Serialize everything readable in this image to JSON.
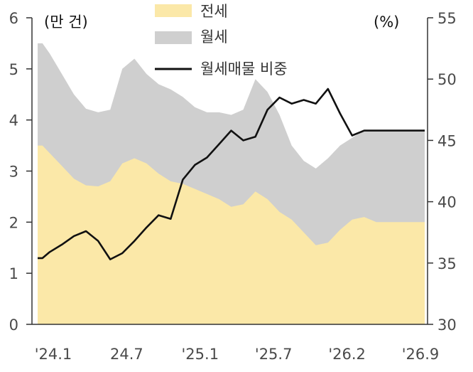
{
  "chart_data": {
    "type": "area",
    "left_unit": "(만 건)",
    "right_unit": "(%)",
    "y_left": {
      "min": 0,
      "max": 6,
      "ticks": [
        "0",
        "1",
        "2",
        "3",
        "4",
        "5",
        "6"
      ]
    },
    "y_right": {
      "min": 30,
      "max": 55,
      "ticks": [
        "30",
        "35",
        "40",
        "45",
        "50",
        "55"
      ]
    },
    "x_tick_labels": [
      "'24.1",
      "24.7",
      "'25.1",
      "'25.7",
      "'26.2",
      "'26.9"
    ],
    "grid": false,
    "legend": [
      "전세",
      "월세",
      "월세매물 비중"
    ],
    "legend_position": "top-center",
    "colors": {
      "jeonse": "#fbe8a8",
      "wolse": "#cfcfcf",
      "ratio": "#111111",
      "axis": "#333333"
    },
    "x": [
      0,
      0.4,
      1,
      2,
      3,
      4,
      5,
      6,
      7,
      8,
      9,
      10,
      11,
      12,
      13,
      14,
      15,
      16,
      17,
      18,
      19,
      20,
      21,
      22,
      23,
      24,
      25,
      26,
      27,
      28,
      29,
      30,
      31,
      32
    ],
    "series": [
      {
        "name": "전세",
        "axis": "left",
        "stacked": true,
        "values": [
          3.5,
          3.5,
          3.35,
          3.1,
          2.85,
          2.72,
          2.7,
          2.8,
          3.15,
          3.25,
          3.15,
          2.95,
          2.8,
          2.75,
          2.65,
          2.55,
          2.45,
          2.3,
          2.35,
          2.6,
          2.45,
          2.2,
          2.05,
          1.8,
          1.55,
          1.6,
          1.85,
          2.05,
          2.1,
          2.0,
          2.0,
          2.0,
          2.0,
          2.0
        ]
      },
      {
        "name": "월세",
        "axis": "left",
        "stacked": true,
        "values": [
          2.0,
          2.0,
          1.95,
          1.8,
          1.65,
          1.5,
          1.45,
          1.4,
          1.85,
          1.95,
          1.75,
          1.75,
          1.8,
          1.7,
          1.6,
          1.6,
          1.7,
          1.8,
          1.85,
          2.2,
          2.1,
          1.9,
          1.45,
          1.4,
          1.5,
          1.65,
          1.65,
          1.6,
          1.7,
          1.8,
          1.8,
          1.8,
          1.8,
          1.8
        ]
      },
      {
        "name": "월세매물 비중",
        "axis": "right",
        "values": [
          35.4,
          35.4,
          35.9,
          36.5,
          37.2,
          37.6,
          36.8,
          35.3,
          35.8,
          36.8,
          37.9,
          38.9,
          38.6,
          41.8,
          43.0,
          43.6,
          44.7,
          45.8,
          45.0,
          45.3,
          47.5,
          48.5,
          48.0,
          48.3,
          48.0,
          49.2,
          47.2,
          45.4,
          45.8,
          45.8,
          45.8,
          45.8,
          45.8,
          45.8
        ]
      }
    ]
  }
}
